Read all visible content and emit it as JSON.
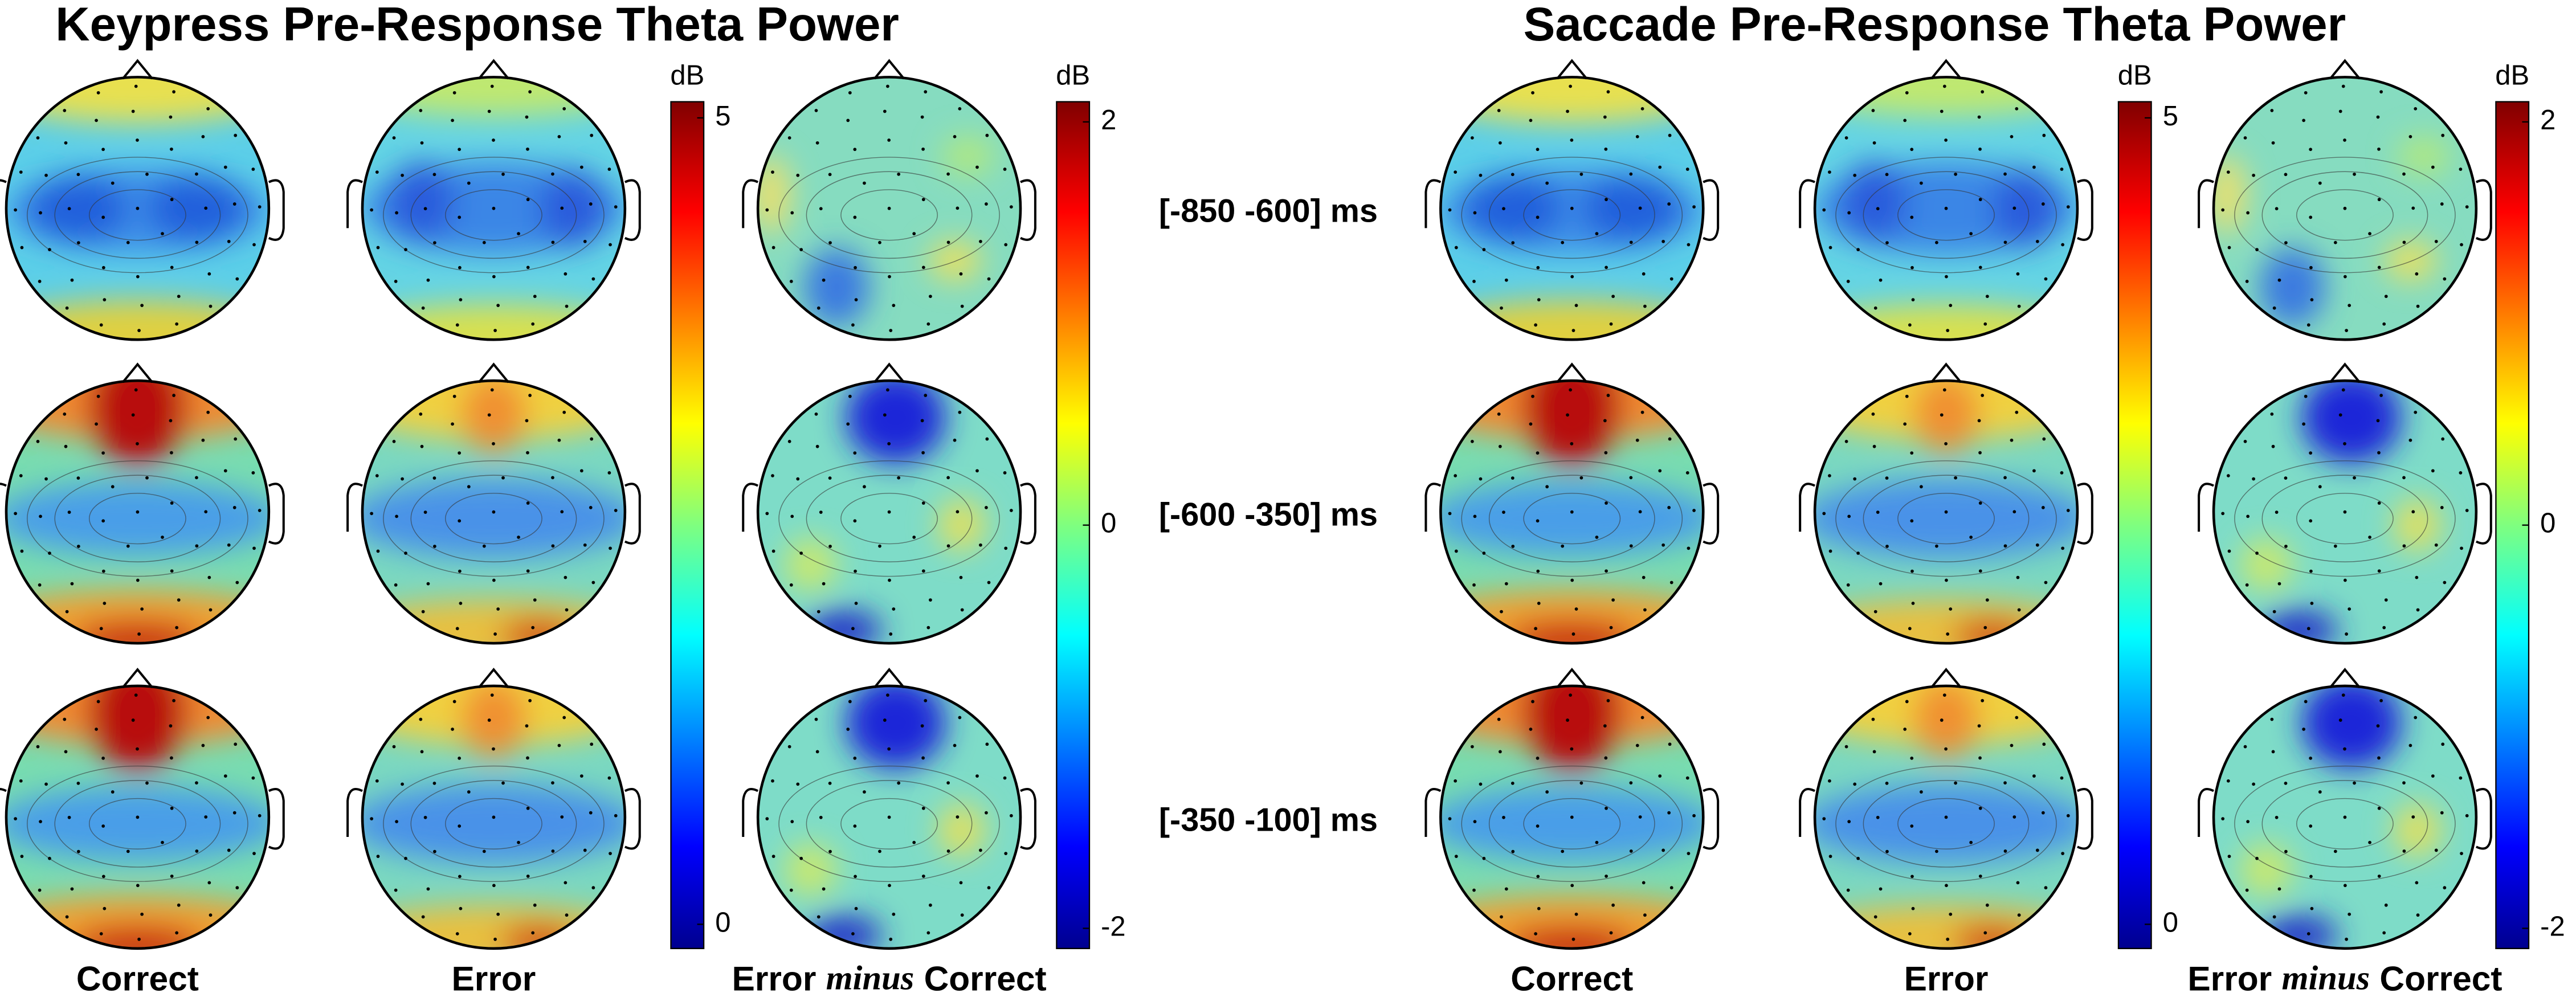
{
  "panels": [
    {
      "title": "Keypress Pre-Response Theta Power",
      "columns": [
        "Correct",
        "Error",
        {
          "first": "Error",
          "emphasis": "minus",
          "last": "Correct"
        }
      ],
      "colorbars": [
        {
          "unit": "dB",
          "lim": [
            -0.15,
            5.1
          ],
          "ticks": [
            0,
            5
          ]
        },
        {
          "unit": "dB",
          "lim": [
            -2.1,
            2.1
          ],
          "ticks": [
            -2,
            0,
            2
          ]
        }
      ]
    },
    {
      "title": "Saccade Pre-Response Theta Power",
      "columns": [
        "Correct",
        "Error",
        {
          "first": "Error",
          "emphasis": "minus",
          "last": "Correct"
        }
      ],
      "colorbars": [
        {
          "unit": "dB",
          "lim": [
            -0.15,
            5.1
          ],
          "ticks": [
            0,
            5
          ]
        },
        {
          "unit": "dB",
          "lim": [
            -2.1,
            2.1
          ],
          "ticks": [
            -2,
            0,
            2
          ]
        }
      ]
    }
  ],
  "rows": [
    "[-850 -600] ms",
    "[-600 -350] ms",
    "[-350 -100] ms"
  ]
}
